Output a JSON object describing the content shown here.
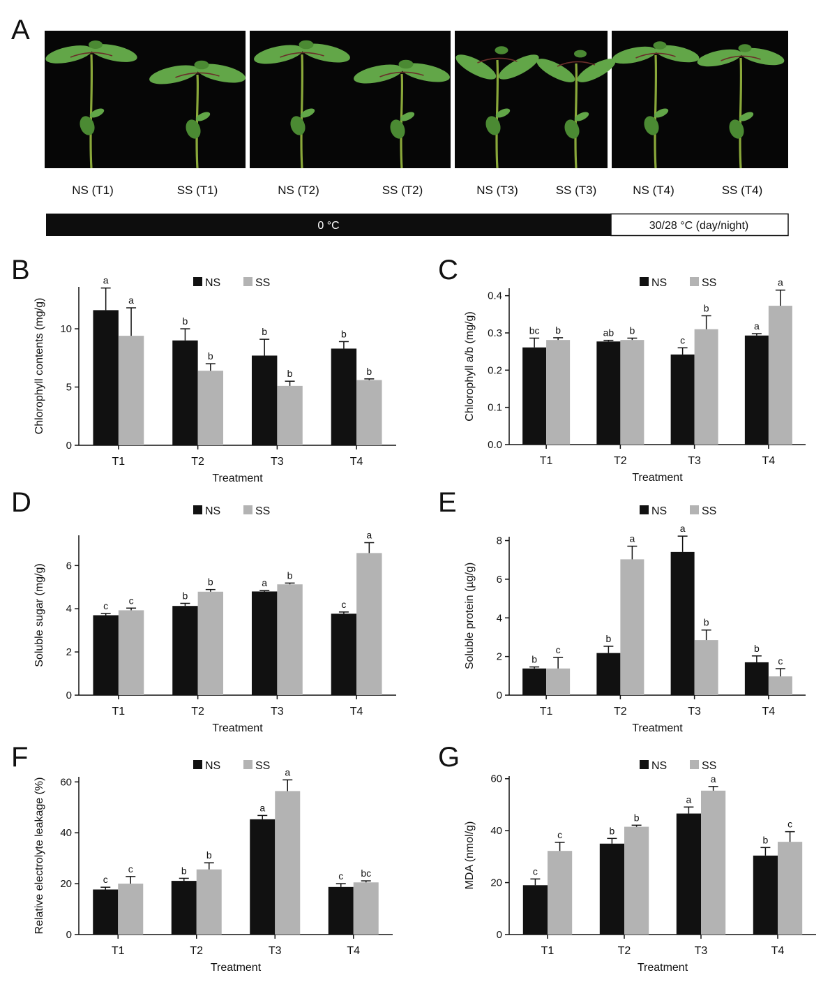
{
  "colors": {
    "ns": "#111111",
    "ss": "#b3b3b3",
    "photo_bg": "#060606",
    "stem": "#8aa83a",
    "leaf": "#62a648",
    "leaf_dark": "#4b8a33",
    "petiole": "#6b2f2a"
  },
  "panel_a": {
    "letter": "A",
    "photos": [
      {
        "labels": [
          "NS (T1)",
          "SS (T1)"
        ]
      },
      {
        "labels": [
          "NS (T2)",
          "SS (T2)"
        ]
      },
      {
        "labels": [
          "NS (T3)",
          "SS (T3)"
        ]
      },
      {
        "labels": [
          "NS (T4)",
          "SS (T4)"
        ]
      }
    ],
    "temp_bar": {
      "cold": "0 °C",
      "warm": "30/28 °C (day/night)"
    }
  },
  "chart_data": [
    {
      "panel": "B",
      "type": "bar",
      "title": "",
      "categories": [
        "T1",
        "T2",
        "T3",
        "T4"
      ],
      "xlabel": "Treatment",
      "ylabel": "Chlorophyll contents (mg/g)",
      "ylim": [
        0,
        13.6
      ],
      "yticks": [
        0,
        5,
        10
      ],
      "yticks_text": [
        "0",
        "5",
        "10"
      ],
      "legend": [
        "NS",
        "SS"
      ],
      "legend_position": "top-center",
      "series": [
        {
          "name": "NS",
          "color": "ns",
          "values": [
            11.6,
            9.0,
            7.7,
            8.3
          ],
          "errors": [
            1.9,
            1.0,
            1.4,
            0.6
          ],
          "labels": [
            "a",
            "b",
            "b",
            "b"
          ]
        },
        {
          "name": "SS",
          "color": "ss",
          "values": [
            9.4,
            6.4,
            5.1,
            5.6
          ],
          "errors": [
            2.4,
            0.6,
            0.4,
            0.1
          ],
          "labels": [
            "a",
            "b",
            "b",
            "b"
          ]
        }
      ]
    },
    {
      "panel": "C",
      "type": "bar",
      "title": "",
      "categories": [
        "T1",
        "T2",
        "T3",
        "T4"
      ],
      "xlabel": "Treatment",
      "ylabel": "Chlorophyll a/b (mg/g)",
      "ylim": [
        0,
        0.42
      ],
      "yticks": [
        0,
        0.1,
        0.2,
        0.3,
        0.4
      ],
      "yticks_text": [
        "0.0",
        "0.1",
        "0.2",
        "0.3",
        "0.4"
      ],
      "legend": [
        "NS",
        "SS"
      ],
      "legend_position": "top-center",
      "series": [
        {
          "name": "NS",
          "color": "ns",
          "values": [
            0.261,
            0.277,
            0.242,
            0.293
          ],
          "errors": [
            0.025,
            0.003,
            0.018,
            0.005
          ],
          "labels": [
            "bc",
            "ab",
            "c",
            "a"
          ]
        },
        {
          "name": "SS",
          "color": "ss",
          "values": [
            0.281,
            0.281,
            0.31,
            0.373
          ],
          "errors": [
            0.006,
            0.005,
            0.036,
            0.042
          ],
          "labels": [
            "b",
            "b",
            "b",
            "a"
          ]
        }
      ]
    },
    {
      "panel": "D",
      "type": "bar",
      "title": "",
      "categories": [
        "T1",
        "T2",
        "T3",
        "T4"
      ],
      "xlabel": "Treatment",
      "ylabel": "Soluble sugar (mg/g)",
      "ylim": [
        0,
        7.4
      ],
      "yticks": [
        0,
        2,
        4,
        6
      ],
      "yticks_text": [
        "0",
        "2",
        "4",
        "6"
      ],
      "legend": [
        "NS",
        "SS"
      ],
      "legend_position": "top-center",
      "series": [
        {
          "name": "NS",
          "color": "ns",
          "values": [
            3.7,
            4.13,
            4.8,
            3.77
          ],
          "errors": [
            0.08,
            0.12,
            0.04,
            0.08
          ],
          "labels": [
            "c",
            "b",
            "a",
            "c"
          ]
        },
        {
          "name": "SS",
          "color": "ss",
          "values": [
            3.93,
            4.79,
            5.13,
            6.58
          ],
          "errors": [
            0.1,
            0.1,
            0.06,
            0.48
          ],
          "labels": [
            "c",
            "b",
            "b",
            "a"
          ]
        }
      ]
    },
    {
      "panel": "E",
      "type": "bar",
      "title": "",
      "categories": [
        "T1",
        "T2",
        "T3",
        "T4"
      ],
      "xlabel": "Treatment",
      "ylabel": "Soluble protein (µg/g)",
      "ylim": [
        0,
        8.2
      ],
      "yticks": [
        0,
        2,
        4,
        6,
        8
      ],
      "yticks_text": [
        "0",
        "2",
        "4",
        "6",
        "8"
      ],
      "legend": [
        "NS",
        "SS"
      ],
      "legend_position": "top-center",
      "series": [
        {
          "name": "NS",
          "color": "ns",
          "values": [
            1.38,
            2.18,
            7.41,
            1.7
          ],
          "errors": [
            0.08,
            0.35,
            0.82,
            0.33
          ],
          "labels": [
            "b",
            "b",
            "a",
            "b"
          ]
        },
        {
          "name": "SS",
          "color": "ss",
          "values": [
            1.38,
            7.03,
            2.85,
            0.97
          ],
          "errors": [
            0.57,
            0.68,
            0.52,
            0.4
          ],
          "labels": [
            "c",
            "a",
            "b",
            "c"
          ]
        }
      ]
    },
    {
      "panel": "F",
      "type": "bar",
      "title": "",
      "categories": [
        "T1",
        "T2",
        "T3",
        "T4"
      ],
      "xlabel": "Treatment",
      "ylabel": "Relative electrolyte leakage (%)",
      "ylim": [
        0,
        62
      ],
      "yticks": [
        0,
        20,
        40,
        60
      ],
      "yticks_text": [
        "0",
        "20",
        "40",
        "60"
      ],
      "legend": [
        "NS",
        "SS"
      ],
      "legend_position": "top-center",
      "series": [
        {
          "name": "NS",
          "color": "ns",
          "values": [
            17.7,
            21.1,
            45.3,
            18.7
          ],
          "errors": [
            0.9,
            1.0,
            1.5,
            1.3
          ],
          "labels": [
            "c",
            "b",
            "a",
            "c"
          ]
        },
        {
          "name": "SS",
          "color": "ss",
          "values": [
            20.0,
            25.6,
            56.4,
            20.5
          ],
          "errors": [
            2.8,
            2.6,
            4.4,
            0.6
          ],
          "labels": [
            "c",
            "b",
            "a",
            "bc"
          ]
        }
      ]
    },
    {
      "panel": "G",
      "type": "bar",
      "title": "",
      "categories": [
        "T1",
        "T2",
        "T3",
        "T4"
      ],
      "xlabel": "Treatment",
      "ylabel": "MDA (nmol/g)",
      "ylim": [
        0,
        61
      ],
      "yticks": [
        0,
        20,
        40,
        60
      ],
      "yticks_text": [
        "0",
        "20",
        "40",
        "60"
      ],
      "legend": [
        "NS",
        "SS"
      ],
      "legend_position": "top-center",
      "series": [
        {
          "name": "NS",
          "color": "ns",
          "values": [
            19.0,
            35.0,
            46.6,
            30.4
          ],
          "errors": [
            2.4,
            2.0,
            2.5,
            3.1
          ],
          "labels": [
            "c",
            "b",
            "a",
            "b"
          ]
        },
        {
          "name": "SS",
          "color": "ss",
          "values": [
            32.2,
            41.5,
            55.4,
            35.7
          ],
          "errors": [
            3.3,
            0.6,
            1.6,
            3.9
          ],
          "labels": [
            "c",
            "b",
            "a",
            "c"
          ]
        }
      ]
    }
  ]
}
